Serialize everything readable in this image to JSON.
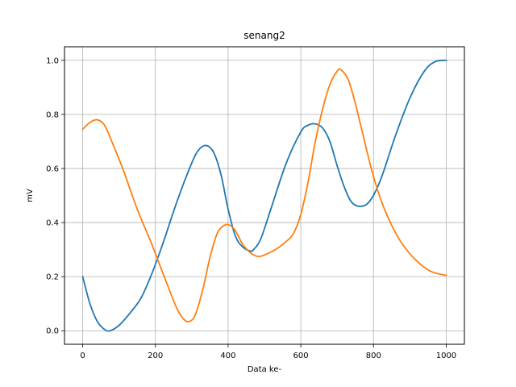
{
  "chart_data": {
    "type": "line",
    "title": "senang2",
    "xlabel": "Data ke-",
    "ylabel": "mV",
    "xlim": [
      -50,
      1050
    ],
    "ylim": [
      -0.05,
      1.05
    ],
    "xticks": [
      0,
      200,
      400,
      600,
      800,
      1000
    ],
    "yticks": [
      0.0,
      0.2,
      0.4,
      0.6,
      0.8,
      1.0
    ],
    "xtick_labels": [
      "0",
      "200",
      "400",
      "600",
      "800",
      "1000"
    ],
    "ytick_labels": [
      "0.0",
      "0.2",
      "0.4",
      "0.6",
      "0.8",
      "1.0"
    ],
    "grid": true,
    "series": [
      {
        "color": "#1f77b4",
        "x": [
          0,
          20,
          40,
          60,
          75,
          100,
          130,
          160,
          190,
          220,
          260,
          300,
          320,
          340,
          360,
          380,
          400,
          420,
          440,
          460,
          470,
          490,
          520,
          560,
          600,
          620,
          640,
          660,
          680,
          700,
          720,
          740,
          765,
          790,
          820,
          860,
          900,
          940,
          970,
          1000
        ],
        "y": [
          0.2,
          0.1,
          0.035,
          0.005,
          0.0,
          0.02,
          0.065,
          0.12,
          0.21,
          0.32,
          0.48,
          0.62,
          0.67,
          0.685,
          0.66,
          0.58,
          0.45,
          0.35,
          0.31,
          0.295,
          0.3,
          0.34,
          0.46,
          0.62,
          0.735,
          0.76,
          0.765,
          0.75,
          0.7,
          0.61,
          0.53,
          0.475,
          0.46,
          0.48,
          0.56,
          0.72,
          0.86,
          0.96,
          0.995,
          1.0
        ]
      },
      {
        "color": "#ff7f0e",
        "x": [
          0,
          20,
          40,
          60,
          80,
          110,
          150,
          190,
          230,
          260,
          280,
          295,
          310,
          330,
          350,
          370,
          390,
          405,
          420,
          440,
          460,
          480,
          500,
          530,
          560,
          580,
          600,
          620,
          640,
          660,
          680,
          700,
          710,
          730,
          750,
          770,
          800,
          830,
          870,
          910,
          950,
          980,
          1000
        ],
        "y": [
          0.745,
          0.77,
          0.78,
          0.76,
          0.7,
          0.6,
          0.45,
          0.32,
          0.18,
          0.08,
          0.04,
          0.035,
          0.06,
          0.15,
          0.27,
          0.36,
          0.39,
          0.39,
          0.37,
          0.32,
          0.29,
          0.275,
          0.28,
          0.3,
          0.33,
          0.36,
          0.43,
          0.55,
          0.7,
          0.82,
          0.91,
          0.96,
          0.965,
          0.93,
          0.84,
          0.73,
          0.57,
          0.45,
          0.34,
          0.27,
          0.225,
          0.21,
          0.205
        ]
      }
    ]
  }
}
